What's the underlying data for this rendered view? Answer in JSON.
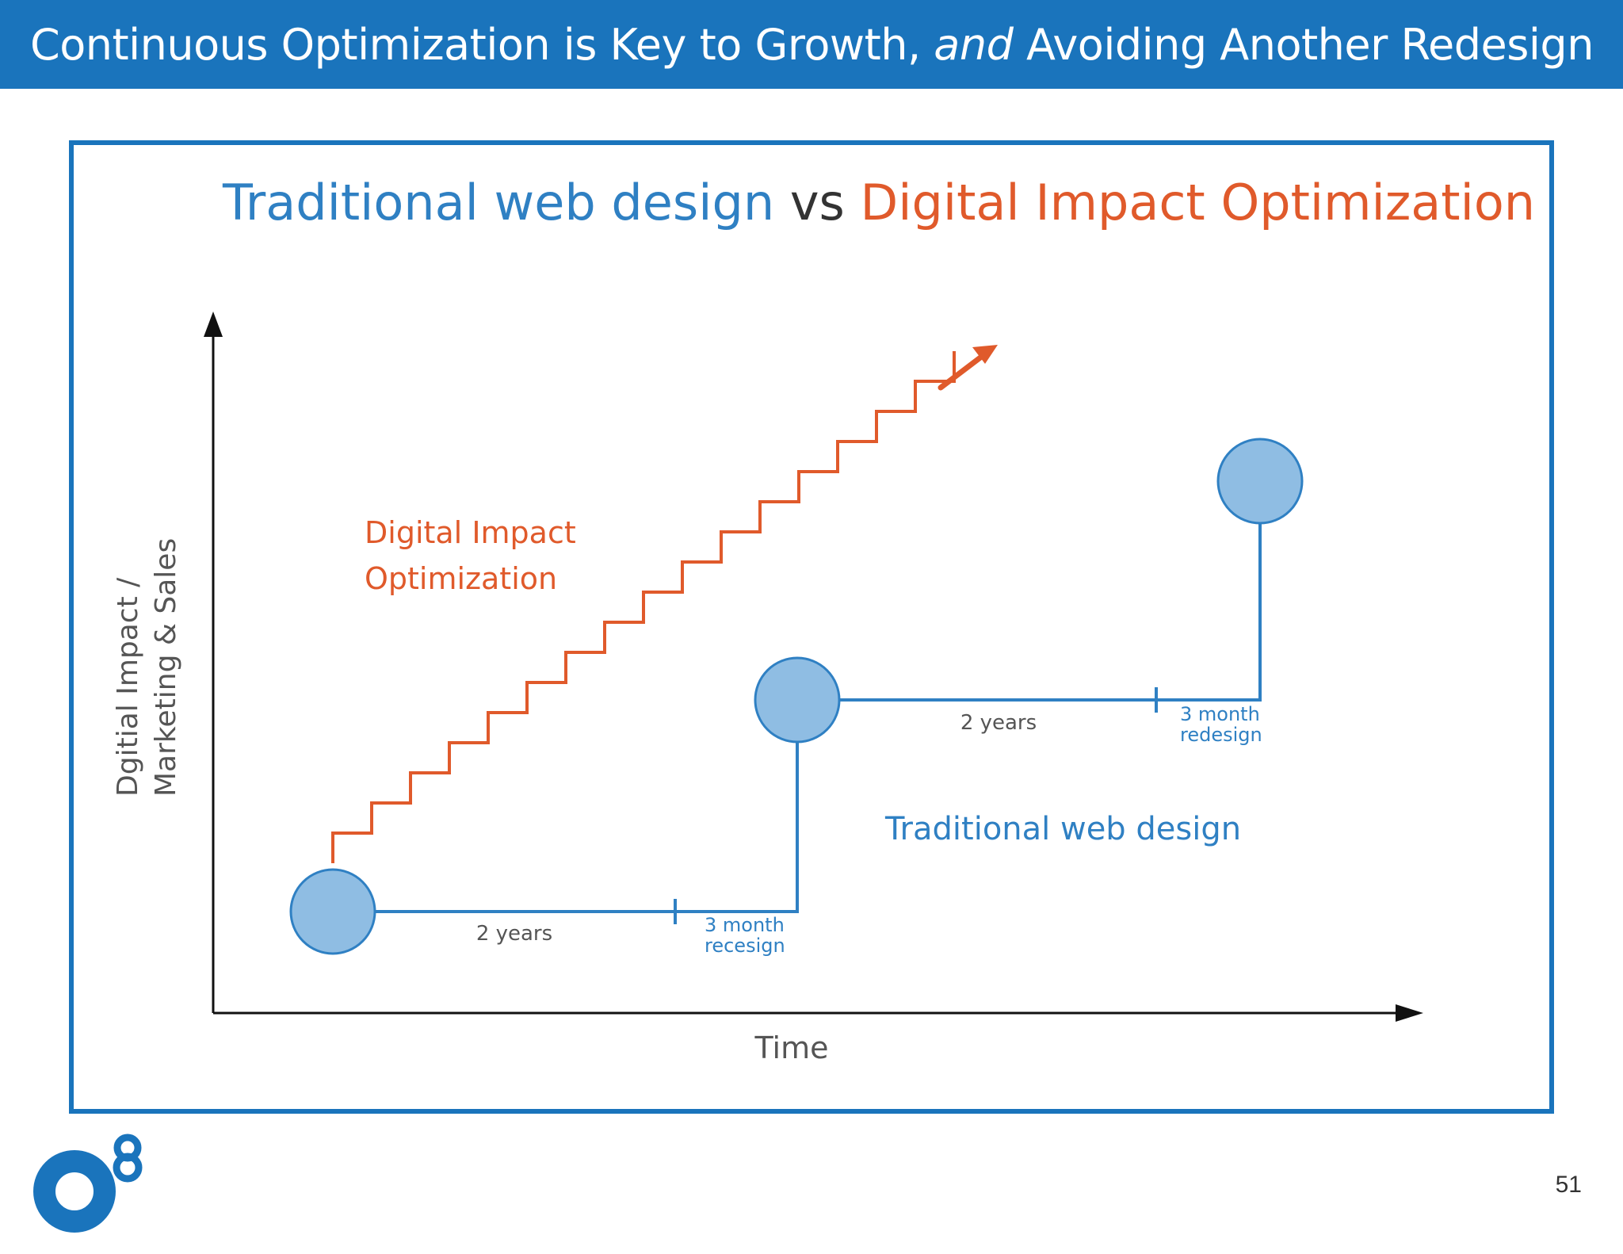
{
  "header": {
    "title_part1": "Continuous Optimization is Key to Growth, ",
    "title_italic": "and",
    "title_part2": " Avoiding Another Redesign"
  },
  "diagram": {
    "title": {
      "left": "Traditional web design",
      "middle": " vs ",
      "right": "Digital Impact Optimization"
    },
    "y_axis_label_line1": "Dgitial Impact /",
    "y_axis_label_line2": "Marketing & Sales",
    "x_axis_label": "Time",
    "dio_label_line1": "Digital Impact",
    "dio_label_line2": "Optimization",
    "traditional_label": "Traditional web design",
    "segment1_duration": "2 years",
    "segment1_redesign_line1": "3 month",
    "segment1_redesign_line2": "recesign",
    "segment2_duration": "2 years",
    "segment2_redesign_line1": "3 month",
    "segment2_redesign_line2": "redesign",
    "colors": {
      "blue": "#2f80c3",
      "circle_fill": "#8fbde3",
      "orange": "#e05a2b",
      "axis": "#111111",
      "gray_text": "#555555"
    }
  },
  "footer": {
    "logo_icon": "o8-logo-icon",
    "page_number": "51"
  }
}
